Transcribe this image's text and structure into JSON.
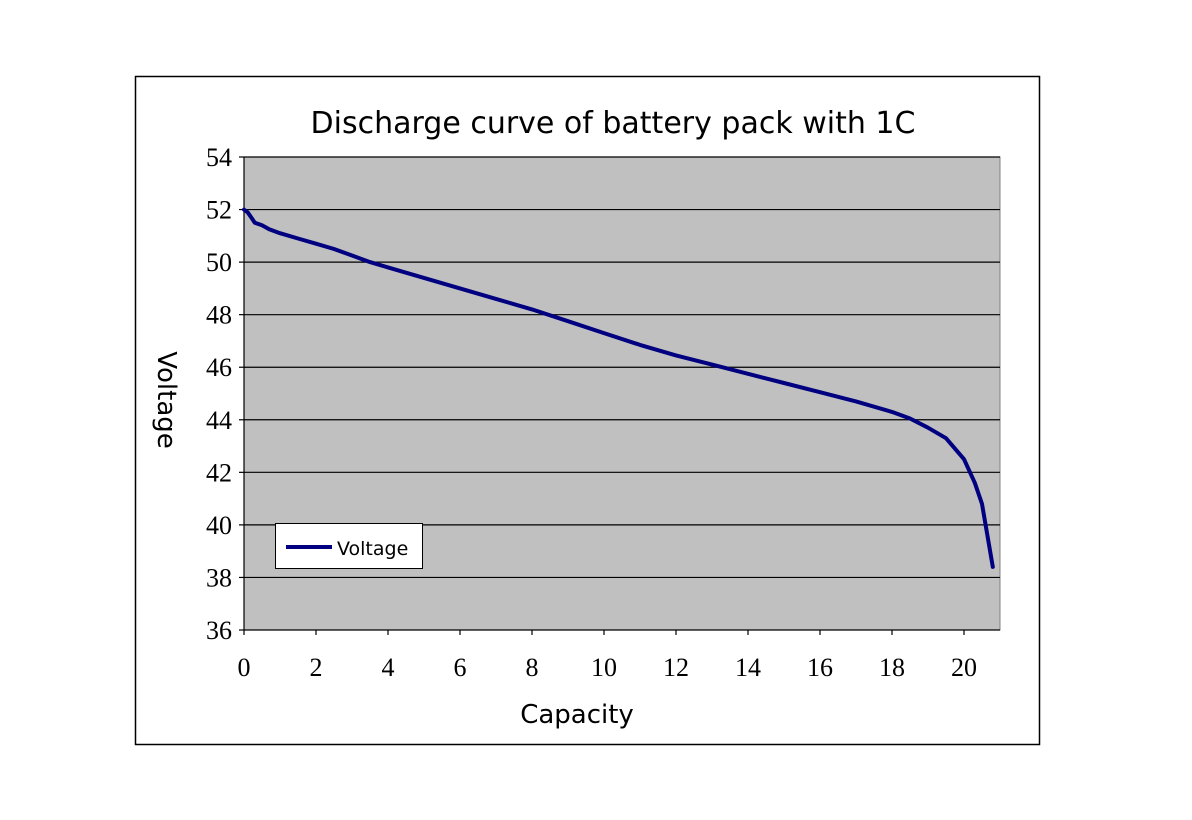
{
  "chart_data": {
    "type": "line",
    "title": "Discharge curve of battery pack with 1C",
    "xlabel": "Capacity",
    "ylabel": "Voltage",
    "xlim": [
      0,
      21
    ],
    "ylim": [
      36,
      54
    ],
    "xticks": [
      0,
      2,
      4,
      6,
      8,
      10,
      12,
      14,
      16,
      18,
      20
    ],
    "yticks": [
      36,
      38,
      40,
      42,
      44,
      46,
      48,
      50,
      52,
      54
    ],
    "grid": "horizontal",
    "legend_position": "bottom-left",
    "colors": {
      "plot_background": "#c0c0c0",
      "series": "#000080",
      "grid": "#000000"
    },
    "series": [
      {
        "name": "Voltage",
        "x": [
          0,
          0.1,
          0.2,
          0.3,
          0.5,
          0.7,
          1.0,
          1.5,
          2.0,
          2.5,
          3.0,
          3.5,
          4.0,
          5.0,
          6.0,
          7.0,
          8.0,
          9.0,
          10.0,
          11.0,
          12.0,
          13.0,
          14.0,
          15.0,
          16.0,
          17.0,
          18.0,
          18.5,
          19.0,
          19.5,
          20.0,
          20.3,
          20.5,
          20.6,
          20.7,
          20.8
        ],
        "values": [
          52.0,
          51.9,
          51.7,
          51.5,
          51.4,
          51.25,
          51.1,
          50.9,
          50.7,
          50.5,
          50.25,
          50.0,
          49.8,
          49.4,
          49.0,
          48.6,
          48.2,
          47.75,
          47.3,
          46.85,
          46.45,
          46.1,
          45.75,
          45.4,
          45.05,
          44.7,
          44.3,
          44.05,
          43.7,
          43.3,
          42.5,
          41.6,
          40.8,
          40.0,
          39.2,
          38.4
        ]
      }
    ]
  }
}
